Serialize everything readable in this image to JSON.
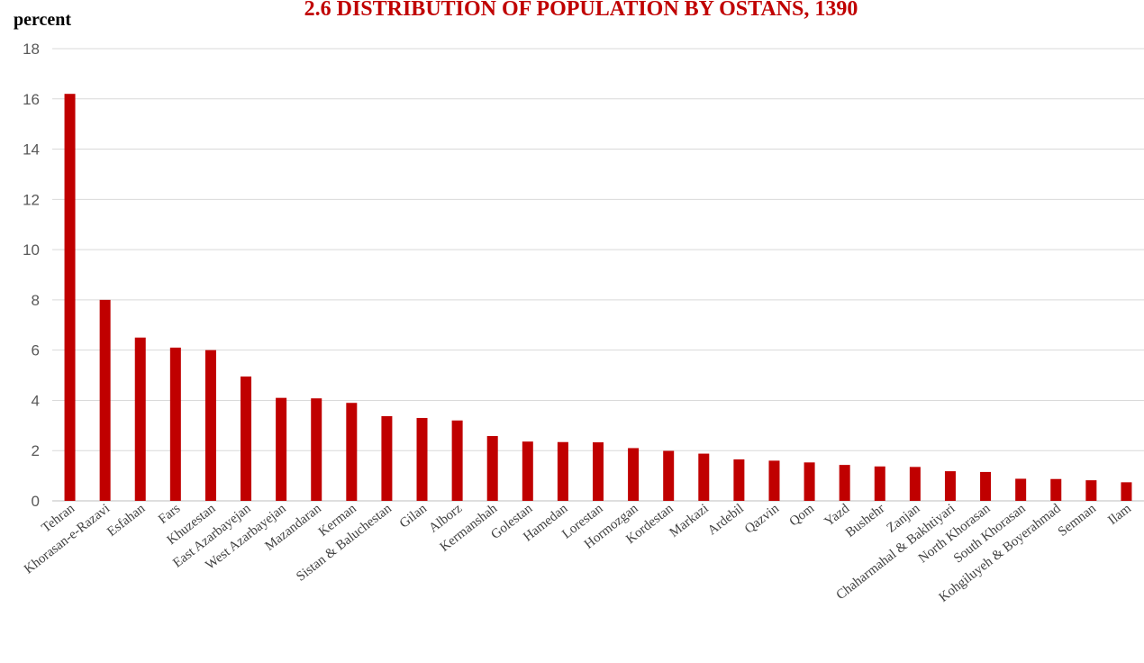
{
  "chart_data": {
    "type": "bar",
    "title": "2.6 DISTRIBUTION OF POPULATION BY OSTANS, 1390",
    "ylabel": "percent",
    "xlabel": "",
    "ylim": [
      0,
      18
    ],
    "yticks": [
      "0",
      "2",
      "4",
      "6",
      "8",
      "10",
      "12",
      "14",
      "16",
      "18"
    ],
    "grid": true,
    "legend": "none",
    "bar_color": "#c00000",
    "categories": [
      "Tehran",
      "Khorasan-e-Razavi",
      "Esfahan",
      "Fars",
      "Khuzestan",
      "East Azarbayejan",
      "West Azarbayejan",
      "Mazandaran",
      "Kerman",
      "Sistan & Baluchestan",
      "Gilan",
      "Alborz",
      "Kermanshah",
      "Golestan",
      "Hamedan",
      "Lorestan",
      "Hormozgan",
      "Kordestan",
      "Markazi",
      "Ardebil",
      "Qazvin",
      "Qom",
      "Yazd",
      "Bushehr",
      "Zanjan",
      "Chaharmahal & Bakhtiyari",
      "North Khorasan",
      "South Khorasan",
      "Kohgiluyeh & Boyerahmad",
      "Semnan",
      "Ilam"
    ],
    "values": [
      16.2,
      8.0,
      6.5,
      6.1,
      6.0,
      4.95,
      4.1,
      4.08,
      3.9,
      3.37,
      3.3,
      3.2,
      2.58,
      2.36,
      2.34,
      2.33,
      2.1,
      1.99,
      1.88,
      1.65,
      1.6,
      1.53,
      1.43,
      1.37,
      1.35,
      1.18,
      1.15,
      0.88,
      0.87,
      0.82,
      0.74
    ]
  }
}
